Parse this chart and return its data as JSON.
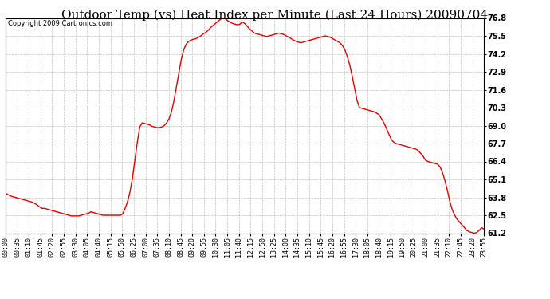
{
  "title": "Outdoor Temp (vs) Heat Index per Minute (Last 24 Hours) 20090704",
  "copyright_text": "Copyright 2009 Cartronics.com",
  "line_color": "#dd0000",
  "background_color": "#ffffff",
  "grid_color": "#bbbbbb",
  "ylim": [
    61.2,
    76.8
  ],
  "yticks": [
    61.2,
    62.5,
    63.8,
    65.1,
    66.4,
    67.7,
    69.0,
    70.3,
    71.6,
    72.9,
    74.2,
    75.5,
    76.8
  ],
  "xtick_labels": [
    "00:00",
    "00:35",
    "01:10",
    "01:45",
    "02:20",
    "02:55",
    "03:30",
    "04:05",
    "04:40",
    "05:15",
    "05:50",
    "06:25",
    "07:00",
    "07:35",
    "08:10",
    "08:45",
    "09:20",
    "09:55",
    "10:30",
    "11:05",
    "11:40",
    "12:15",
    "12:50",
    "13:25",
    "14:00",
    "14:35",
    "15:10",
    "15:45",
    "16:20",
    "16:55",
    "17:30",
    "18:05",
    "18:40",
    "19:15",
    "19:50",
    "20:25",
    "21:00",
    "21:35",
    "22:10",
    "22:45",
    "23:20",
    "23:55"
  ],
  "data_points": [
    64.1,
    64.0,
    63.9,
    63.85,
    63.8,
    63.75,
    63.7,
    63.65,
    63.6,
    63.55,
    63.5,
    63.45,
    63.35,
    63.25,
    63.1,
    63.0,
    63.0,
    62.95,
    62.9,
    62.85,
    62.8,
    62.75,
    62.7,
    62.65,
    62.6,
    62.55,
    62.5,
    62.45,
    62.45,
    62.45,
    62.45,
    62.5,
    62.55,
    62.6,
    62.65,
    62.75,
    62.7,
    62.65,
    62.6,
    62.55,
    62.5,
    62.5,
    62.5,
    62.5,
    62.5,
    62.5,
    62.5,
    62.5,
    62.6,
    63.0,
    63.5,
    64.2,
    65.2,
    66.5,
    67.8,
    68.9,
    69.2,
    69.15,
    69.1,
    69.05,
    68.95,
    68.9,
    68.85,
    68.85,
    68.9,
    69.0,
    69.2,
    69.5,
    70.0,
    70.8,
    71.8,
    72.8,
    73.8,
    74.5,
    74.9,
    75.1,
    75.2,
    75.25,
    75.3,
    75.4,
    75.5,
    75.65,
    75.75,
    75.9,
    76.1,
    76.25,
    76.4,
    76.55,
    76.7,
    76.8,
    76.75,
    76.6,
    76.5,
    76.4,
    76.35,
    76.3,
    76.35,
    76.5,
    76.4,
    76.2,
    76.0,
    75.85,
    75.7,
    75.65,
    75.6,
    75.55,
    75.5,
    75.45,
    75.5,
    75.55,
    75.6,
    75.65,
    75.7,
    75.65,
    75.6,
    75.5,
    75.4,
    75.3,
    75.2,
    75.1,
    75.05,
    75.0,
    75.05,
    75.1,
    75.15,
    75.2,
    75.25,
    75.3,
    75.35,
    75.4,
    75.45,
    75.5,
    75.45,
    75.4,
    75.3,
    75.2,
    75.1,
    75.0,
    74.8,
    74.5,
    74.0,
    73.4,
    72.6,
    71.7,
    70.8,
    70.3,
    70.25,
    70.2,
    70.15,
    70.1,
    70.05,
    70.0,
    69.9,
    69.8,
    69.5,
    69.2,
    68.8,
    68.4,
    68.0,
    67.8,
    67.7,
    67.65,
    67.6,
    67.55,
    67.5,
    67.45,
    67.4,
    67.35,
    67.3,
    67.2,
    67.0,
    66.8,
    66.5,
    66.4,
    66.35,
    66.3,
    66.25,
    66.2,
    66.0,
    65.6,
    65.0,
    64.3,
    63.5,
    62.9,
    62.5,
    62.2,
    62.0,
    61.8,
    61.6,
    61.4,
    61.3,
    61.25,
    61.2,
    61.25,
    61.4,
    61.6,
    61.5
  ],
  "title_fontsize": 11,
  "copyright_fontsize": 6,
  "tick_fontsize": 6,
  "line_width": 1.0
}
